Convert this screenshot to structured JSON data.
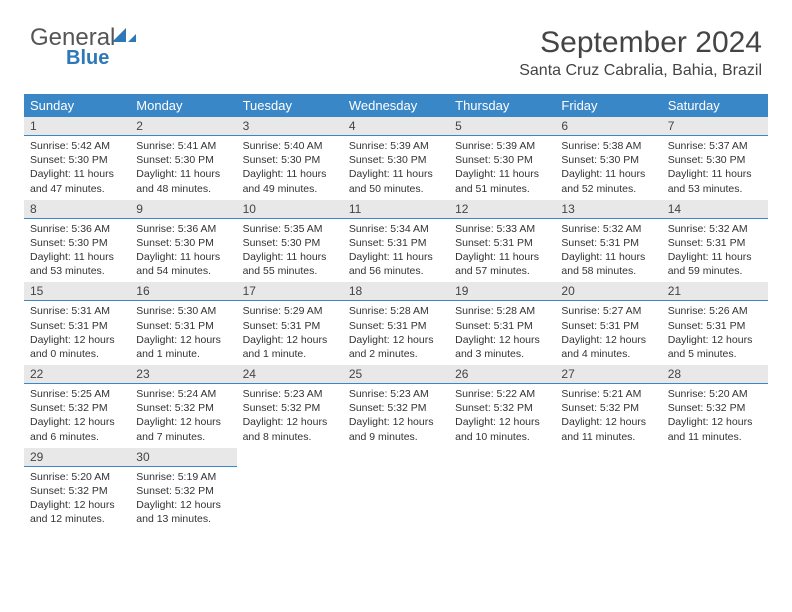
{
  "brand": {
    "name1": "General",
    "name2": "Blue"
  },
  "header": {
    "month_title": "September 2024",
    "location": "Santa Cruz Cabralia, Bahia, Brazil"
  },
  "colors": {
    "header_bg": "#3a87c7",
    "header_fg": "#ffffff",
    "daynum_bg": "#e8e8e8",
    "rule": "#3a87c7"
  },
  "weekdays": [
    "Sunday",
    "Monday",
    "Tuesday",
    "Wednesday",
    "Thursday",
    "Friday",
    "Saturday"
  ],
  "weeks": [
    [
      {
        "n": "1",
        "sr": "Sunrise: 5:42 AM",
        "ss": "Sunset: 5:30 PM",
        "dl": "Daylight: 11 hours and 47 minutes."
      },
      {
        "n": "2",
        "sr": "Sunrise: 5:41 AM",
        "ss": "Sunset: 5:30 PM",
        "dl": "Daylight: 11 hours and 48 minutes."
      },
      {
        "n": "3",
        "sr": "Sunrise: 5:40 AM",
        "ss": "Sunset: 5:30 PM",
        "dl": "Daylight: 11 hours and 49 minutes."
      },
      {
        "n": "4",
        "sr": "Sunrise: 5:39 AM",
        "ss": "Sunset: 5:30 PM",
        "dl": "Daylight: 11 hours and 50 minutes."
      },
      {
        "n": "5",
        "sr": "Sunrise: 5:39 AM",
        "ss": "Sunset: 5:30 PM",
        "dl": "Daylight: 11 hours and 51 minutes."
      },
      {
        "n": "6",
        "sr": "Sunrise: 5:38 AM",
        "ss": "Sunset: 5:30 PM",
        "dl": "Daylight: 11 hours and 52 minutes."
      },
      {
        "n": "7",
        "sr": "Sunrise: 5:37 AM",
        "ss": "Sunset: 5:30 PM",
        "dl": "Daylight: 11 hours and 53 minutes."
      }
    ],
    [
      {
        "n": "8",
        "sr": "Sunrise: 5:36 AM",
        "ss": "Sunset: 5:30 PM",
        "dl": "Daylight: 11 hours and 53 minutes."
      },
      {
        "n": "9",
        "sr": "Sunrise: 5:36 AM",
        "ss": "Sunset: 5:30 PM",
        "dl": "Daylight: 11 hours and 54 minutes."
      },
      {
        "n": "10",
        "sr": "Sunrise: 5:35 AM",
        "ss": "Sunset: 5:30 PM",
        "dl": "Daylight: 11 hours and 55 minutes."
      },
      {
        "n": "11",
        "sr": "Sunrise: 5:34 AM",
        "ss": "Sunset: 5:31 PM",
        "dl": "Daylight: 11 hours and 56 minutes."
      },
      {
        "n": "12",
        "sr": "Sunrise: 5:33 AM",
        "ss": "Sunset: 5:31 PM",
        "dl": "Daylight: 11 hours and 57 minutes."
      },
      {
        "n": "13",
        "sr": "Sunrise: 5:32 AM",
        "ss": "Sunset: 5:31 PM",
        "dl": "Daylight: 11 hours and 58 minutes."
      },
      {
        "n": "14",
        "sr": "Sunrise: 5:32 AM",
        "ss": "Sunset: 5:31 PM",
        "dl": "Daylight: 11 hours and 59 minutes."
      }
    ],
    [
      {
        "n": "15",
        "sr": "Sunrise: 5:31 AM",
        "ss": "Sunset: 5:31 PM",
        "dl": "Daylight: 12 hours and 0 minutes."
      },
      {
        "n": "16",
        "sr": "Sunrise: 5:30 AM",
        "ss": "Sunset: 5:31 PM",
        "dl": "Daylight: 12 hours and 1 minute."
      },
      {
        "n": "17",
        "sr": "Sunrise: 5:29 AM",
        "ss": "Sunset: 5:31 PM",
        "dl": "Daylight: 12 hours and 1 minute."
      },
      {
        "n": "18",
        "sr": "Sunrise: 5:28 AM",
        "ss": "Sunset: 5:31 PM",
        "dl": "Daylight: 12 hours and 2 minutes."
      },
      {
        "n": "19",
        "sr": "Sunrise: 5:28 AM",
        "ss": "Sunset: 5:31 PM",
        "dl": "Daylight: 12 hours and 3 minutes."
      },
      {
        "n": "20",
        "sr": "Sunrise: 5:27 AM",
        "ss": "Sunset: 5:31 PM",
        "dl": "Daylight: 12 hours and 4 minutes."
      },
      {
        "n": "21",
        "sr": "Sunrise: 5:26 AM",
        "ss": "Sunset: 5:31 PM",
        "dl": "Daylight: 12 hours and 5 minutes."
      }
    ],
    [
      {
        "n": "22",
        "sr": "Sunrise: 5:25 AM",
        "ss": "Sunset: 5:32 PM",
        "dl": "Daylight: 12 hours and 6 minutes."
      },
      {
        "n": "23",
        "sr": "Sunrise: 5:24 AM",
        "ss": "Sunset: 5:32 PM",
        "dl": "Daylight: 12 hours and 7 minutes."
      },
      {
        "n": "24",
        "sr": "Sunrise: 5:23 AM",
        "ss": "Sunset: 5:32 PM",
        "dl": "Daylight: 12 hours and 8 minutes."
      },
      {
        "n": "25",
        "sr": "Sunrise: 5:23 AM",
        "ss": "Sunset: 5:32 PM",
        "dl": "Daylight: 12 hours and 9 minutes."
      },
      {
        "n": "26",
        "sr": "Sunrise: 5:22 AM",
        "ss": "Sunset: 5:32 PM",
        "dl": "Daylight: 12 hours and 10 minutes."
      },
      {
        "n": "27",
        "sr": "Sunrise: 5:21 AM",
        "ss": "Sunset: 5:32 PM",
        "dl": "Daylight: 12 hours and 11 minutes."
      },
      {
        "n": "28",
        "sr": "Sunrise: 5:20 AM",
        "ss": "Sunset: 5:32 PM",
        "dl": "Daylight: 12 hours and 11 minutes."
      }
    ],
    [
      {
        "n": "29",
        "sr": "Sunrise: 5:20 AM",
        "ss": "Sunset: 5:32 PM",
        "dl": "Daylight: 12 hours and 12 minutes."
      },
      {
        "n": "30",
        "sr": "Sunrise: 5:19 AM",
        "ss": "Sunset: 5:32 PM",
        "dl": "Daylight: 12 hours and 13 minutes."
      },
      {
        "empty": true
      },
      {
        "empty": true
      },
      {
        "empty": true
      },
      {
        "empty": true
      },
      {
        "empty": true
      }
    ]
  ]
}
